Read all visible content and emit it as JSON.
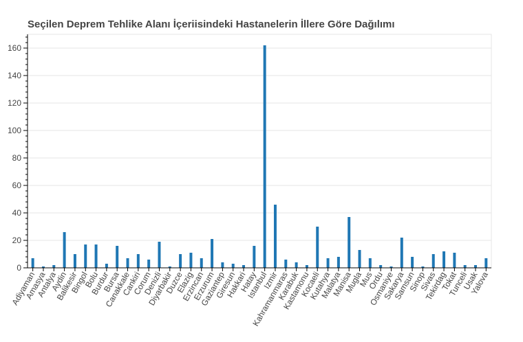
{
  "chart_data": {
    "type": "bar",
    "title": "Seçilen Deprem Tehlike Alanı İçeriisindeki Hastanelerin İllere Göre Dağılımı",
    "xlabel": "",
    "ylabel": "",
    "ylim": [
      0,
      170
    ],
    "y_ticks": [
      0,
      20,
      40,
      60,
      80,
      100,
      120,
      140,
      160
    ],
    "grid": true,
    "bar_color": "#1f77b4",
    "categories": [
      "Adiyaman",
      "Amasya",
      "Antalya",
      "Aydin",
      "Balikesir",
      "Bingol",
      "Bolu",
      "Burdur",
      "Bursa",
      "Canakkale",
      "Cankiri",
      "Corum",
      "Denizli",
      "Diyarbakir",
      "Duzce",
      "Elazig",
      "Erzincan",
      "Erzurum",
      "Gaziantep",
      "Giresun",
      "Hakkari",
      "Hatay",
      "Istanbul",
      "Izmir",
      "Kahramanmaras",
      "Karabuk",
      "Kastamonu",
      "Kocaeli",
      "Kutahya",
      "Malatya",
      "Manisa",
      "Mugla",
      "Mus",
      "Ordu",
      "Osmaniye",
      "Sakarya",
      "Samsun",
      "Sinop",
      "Sivas",
      "Tekirdag",
      "Tokat",
      "Tunceli",
      "Usak",
      "Yalova"
    ],
    "values": [
      7,
      1,
      2,
      26,
      10,
      17,
      17,
      3,
      16,
      7,
      10,
      6,
      19,
      1,
      10,
      11,
      7,
      21,
      4,
      3,
      2,
      16,
      162,
      46,
      6,
      4,
      2,
      30,
      7,
      8,
      37,
      13,
      7,
      2,
      1,
      22,
      8,
      1,
      10,
      12,
      11,
      2,
      2,
      7
    ]
  }
}
